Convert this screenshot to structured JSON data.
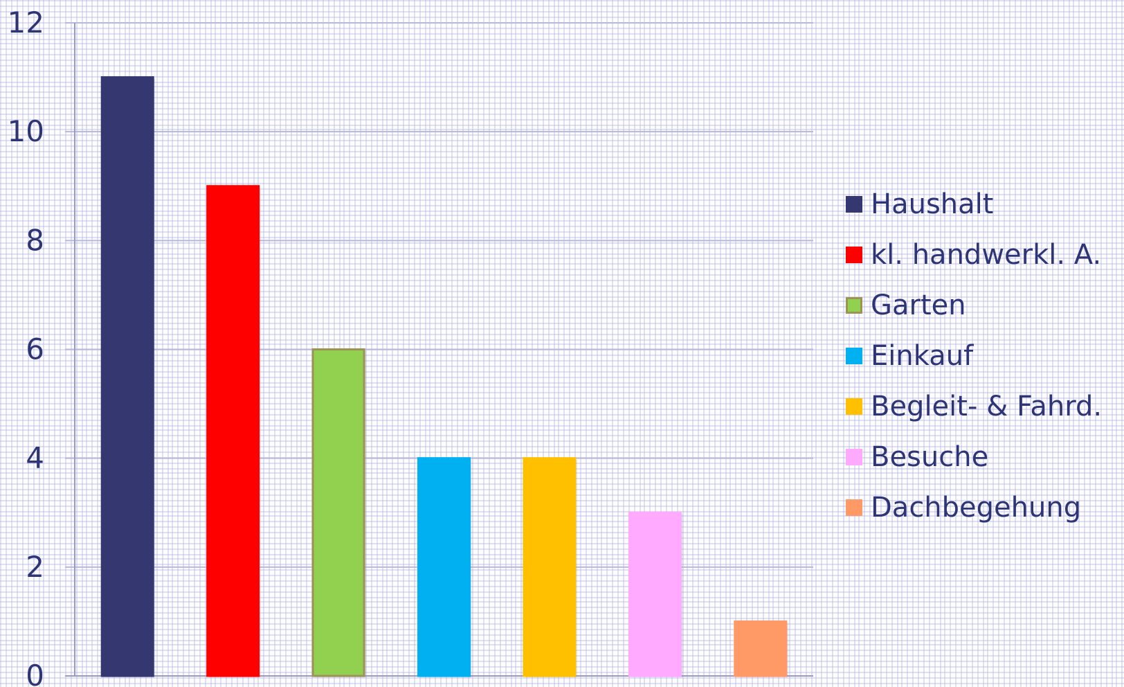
{
  "chart_data": {
    "type": "bar",
    "title": "",
    "xlabel": "",
    "ylabel": "",
    "ylim": [
      0,
      12
    ],
    "yticks": [
      0,
      2,
      4,
      6,
      8,
      10,
      12
    ],
    "grid": true,
    "legend_position": "right",
    "categories": [
      "Haushalt",
      "kl. handwerkl. A.",
      "Garten",
      "Einkauf",
      "Begleit- & Fahrd.",
      "Besuche",
      "Dachbegehung"
    ],
    "values": [
      11,
      9,
      6,
      4,
      4,
      3,
      1
    ],
    "colors": [
      "#353870",
      "#ff0000",
      "#92d050",
      "#00b0f0",
      "#ffc000",
      "#ffaaff",
      "#ff9966"
    ],
    "border_colors": [
      "#353870",
      "#ff0000",
      "#9b9455",
      "#00b0f0",
      "#ffc000",
      "#ffaaff",
      "#ff9966"
    ]
  },
  "style": {
    "axis_color": "#9999c8",
    "gridline_color": "#b8b8dc",
    "tick_label_color": "#2e3576"
  }
}
